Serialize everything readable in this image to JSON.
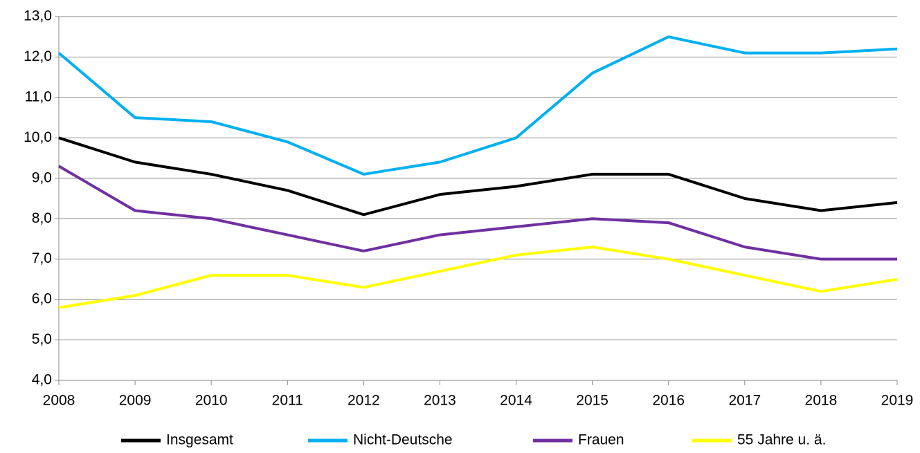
{
  "chart_data": {
    "type": "line",
    "categories": [
      "2008",
      "2009",
      "2010",
      "2011",
      "2012",
      "2013",
      "2014",
      "2015",
      "2016",
      "2017",
      "2018",
      "2019"
    ],
    "series": [
      {
        "name": "Insgesamt",
        "color": "#000000",
        "values": [
          10.0,
          9.4,
          9.1,
          8.7,
          8.1,
          8.6,
          8.8,
          9.1,
          9.1,
          8.5,
          8.2,
          8.4
        ]
      },
      {
        "name": "Nicht-Deutsche",
        "color": "#00b0f0",
        "values": [
          12.1,
          10.5,
          10.4,
          9.9,
          9.1,
          9.4,
          10.0,
          11.6,
          12.5,
          12.1,
          12.1,
          12.2
        ]
      },
      {
        "name": "Frauen",
        "color": "#7030a0",
        "values": [
          9.3,
          8.2,
          8.0,
          7.6,
          7.2,
          7.6,
          7.8,
          8.0,
          7.9,
          7.3,
          7.0,
          7.0
        ]
      },
      {
        "name": "55 Jahre u. ä.",
        "color": "#ffff00",
        "values": [
          5.8,
          6.1,
          6.6,
          6.6,
          6.3,
          6.7,
          7.1,
          7.3,
          7.0,
          6.6,
          6.2,
          6.5
        ]
      }
    ],
    "ylim": [
      4,
      13
    ],
    "yticks": [
      {
        "value": 4,
        "label": "4,0"
      },
      {
        "value": 5,
        "label": "5,0"
      },
      {
        "value": 6,
        "label": "6,0"
      },
      {
        "value": 7,
        "label": "7,0"
      },
      {
        "value": 8,
        "label": "8,0"
      },
      {
        "value": 9,
        "label": "9,0"
      },
      {
        "value": 10,
        "label": "10,0"
      },
      {
        "value": 11,
        "label": "11,0"
      },
      {
        "value": 12,
        "label": "12,0"
      },
      {
        "value": 13,
        "label": "13,0"
      }
    ],
    "grid": true,
    "legend": "bottom"
  }
}
